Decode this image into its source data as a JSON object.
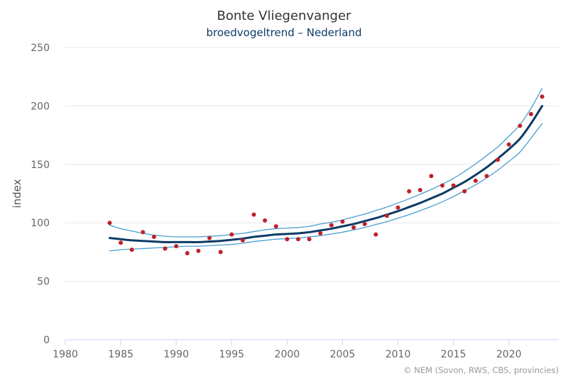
{
  "chart_data": {
    "type": "line",
    "title": "Bonte Vliegenvanger",
    "subtitle": "broedvogeltrend – Nederland",
    "ylabel": "index",
    "xlabel": "",
    "xlim": [
      1980,
      2024.5
    ],
    "ylim": [
      0,
      250
    ],
    "x_ticks": [
      "1980",
      "1985",
      "1990",
      "1995",
      "2000",
      "2005",
      "2010",
      "2015",
      "2020"
    ],
    "y_ticks": [
      "0",
      "50",
      "100",
      "150",
      "200",
      "250"
    ],
    "grid": "horizontal",
    "credit": "© NEM (Sovon, RWS, CBS, provincies)",
    "colors": {
      "trend": "#0d3b66",
      "bounds": "#4a9fd0",
      "points": "#c0202a",
      "grid": "#e6e6e6",
      "axis": "#ccd6eb"
    },
    "series": [
      {
        "role": "trend",
        "x": [
          1984,
          1985,
          1986,
          1987,
          1988,
          1989,
          1990,
          1991,
          1992,
          1993,
          1994,
          1995,
          1996,
          1997,
          1998,
          1999,
          2000,
          2001,
          2002,
          2003,
          2004,
          2005,
          2006,
          2007,
          2008,
          2009,
          2010,
          2011,
          2012,
          2013,
          2014,
          2015,
          2016,
          2017,
          2018,
          2019,
          2020,
          2021,
          2022,
          2023
        ],
        "y": [
          87,
          86,
          85,
          84.5,
          84,
          83.5,
          83.5,
          83.5,
          83.5,
          84,
          84.5,
          85.5,
          86.5,
          88,
          89,
          90,
          90.5,
          91,
          92,
          93.5,
          95,
          97,
          99,
          101.5,
          104,
          107,
          110,
          113.5,
          117,
          121,
          125,
          130,
          135,
          141,
          147.5,
          155,
          163,
          172,
          185,
          200
        ]
      },
      {
        "role": "upper",
        "x": [
          1984,
          1985,
          1986,
          1987,
          1988,
          1989,
          1990,
          1991,
          1992,
          1993,
          1994,
          1995,
          1996,
          1997,
          1998,
          1999,
          2000,
          2001,
          2002,
          2003,
          2004,
          2005,
          2006,
          2007,
          2008,
          2009,
          2010,
          2011,
          2012,
          2013,
          2014,
          2015,
          2016,
          2017,
          2018,
          2019,
          2020,
          2021,
          2022,
          2023
        ],
        "y": [
          98,
          95,
          93,
          91,
          89.5,
          88.5,
          88,
          88,
          88,
          88.5,
          89,
          90,
          91,
          92.5,
          94,
          95,
          95.5,
          96,
          97,
          99,
          100.5,
          102.5,
          105,
          107.5,
          110.5,
          113.5,
          117,
          120.5,
          124.5,
          128.5,
          133,
          138,
          144,
          150.5,
          157.5,
          165,
          174,
          184,
          198,
          215
        ]
      },
      {
        "role": "lower",
        "x": [
          1984,
          1985,
          1986,
          1987,
          1988,
          1989,
          1990,
          1991,
          1992,
          1993,
          1994,
          1995,
          1996,
          1997,
          1998,
          1999,
          2000,
          2001,
          2002,
          2003,
          2004,
          2005,
          2006,
          2007,
          2008,
          2009,
          2010,
          2011,
          2012,
          2013,
          2014,
          2015,
          2016,
          2017,
          2018,
          2019,
          2020,
          2021,
          2022,
          2023
        ],
        "y": [
          76,
          77,
          77.5,
          78,
          78.5,
          79,
          79.5,
          80,
          80,
          80.5,
          81,
          81.5,
          82.5,
          84,
          85,
          86,
          86.5,
          87,
          88,
          89,
          90.5,
          92,
          94,
          96,
          98.5,
          101,
          104,
          107,
          110.5,
          114,
          118,
          122.5,
          127.5,
          132.5,
          138.5,
          145,
          152.5,
          160.5,
          172.5,
          185
        ]
      },
      {
        "role": "observed",
        "x": [
          1984,
          1985,
          1986,
          1987,
          1988,
          1989,
          1990,
          1991,
          1992,
          1993,
          1994,
          1995,
          1996,
          1997,
          1998,
          1999,
          2000,
          2001,
          2002,
          2003,
          2004,
          2005,
          2006,
          2007,
          2008,
          2009,
          2010,
          2011,
          2012,
          2013,
          2014,
          2015,
          2016,
          2017,
          2018,
          2019,
          2020,
          2021,
          2022,
          2023
        ],
        "y": [
          100,
          83,
          77,
          92,
          88,
          78,
          80,
          74,
          76,
          87,
          75,
          90,
          85,
          107,
          102,
          97,
          86,
          86,
          86,
          91,
          98,
          101,
          96,
          99,
          90,
          106,
          113,
          127,
          128,
          140,
          132,
          132,
          127,
          136,
          140,
          154,
          167,
          183,
          193,
          208
        ]
      }
    ]
  }
}
